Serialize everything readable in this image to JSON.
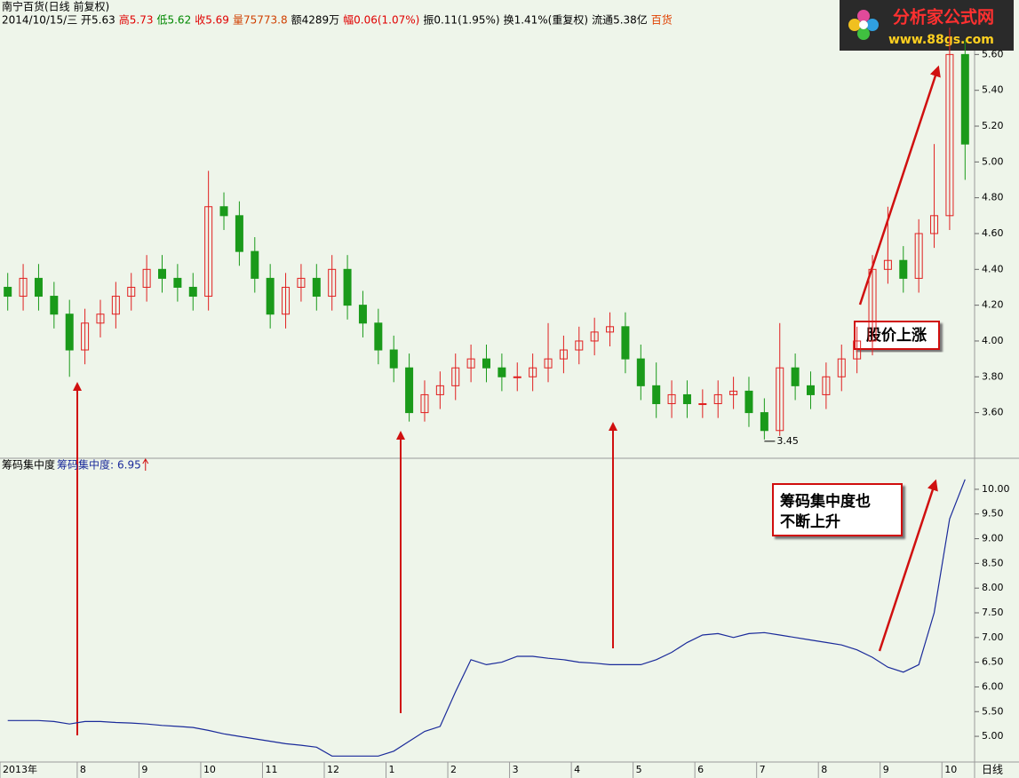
{
  "header": {
    "title": "南宁百货(日线 前复权)",
    "info": [
      {
        "text": "2014/10/15/三 开5.63",
        "color": "#000000"
      },
      {
        "text": "高5.73",
        "color": "#e00000"
      },
      {
        "text": "低5.62",
        "color": "#008800"
      },
      {
        "text": "收5.69",
        "color": "#e00000"
      },
      {
        "text": "量75773.8",
        "color": "#d04000"
      },
      {
        "text": "额4289万",
        "color": "#000000"
      },
      {
        "text": "幅0.06(1.07%)",
        "color": "#e00000"
      },
      {
        "text": "振0.11(1.95%)",
        "color": "#000000"
      },
      {
        "text": "换1.41%(重复权)",
        "color": "#000000"
      },
      {
        "text": "流通5.38亿",
        "color": "#000000"
      },
      {
        "text": "百货",
        "color": "#e04000"
      }
    ]
  },
  "logo": {
    "name": "分析家公式网",
    "url": "www.88gs.com"
  },
  "corner_label": "日线",
  "chart_data": [
    {
      "type": "candlestick",
      "up_color": "#e02020",
      "down_color": "#1a9a1a",
      "categories": [
        "2013年",
        null,
        null,
        null,
        null,
        "8",
        null,
        null,
        null,
        "9",
        null,
        null,
        null,
        "10",
        null,
        null,
        null,
        "11",
        null,
        null,
        null,
        "12",
        null,
        null,
        null,
        "1",
        null,
        null,
        null,
        "2",
        null,
        null,
        null,
        "3",
        null,
        null,
        null,
        "4",
        null,
        null,
        null,
        "5",
        null,
        null,
        null,
        "6",
        null,
        null,
        null,
        "7",
        null,
        null,
        null,
        "8",
        null,
        null,
        null,
        "9",
        null,
        null,
        null,
        "10",
        null
      ],
      "open": [
        4.3,
        4.25,
        4.35,
        4.25,
        4.15,
        3.95,
        4.1,
        4.15,
        4.25,
        4.3,
        4.4,
        4.35,
        4.3,
        4.25,
        4.75,
        4.7,
        4.5,
        4.35,
        4.15,
        4.3,
        4.35,
        4.25,
        4.4,
        4.2,
        4.1,
        3.95,
        3.85,
        3.6,
        3.7,
        3.75,
        3.85,
        3.9,
        3.85,
        3.8,
        3.8,
        3.85,
        3.9,
        3.95,
        4.0,
        4.05,
        4.08,
        3.9,
        3.75,
        3.65,
        3.7,
        3.65,
        3.65,
        3.7,
        3.72,
        3.6,
        3.5,
        3.85,
        3.75,
        3.7,
        3.8,
        3.9,
        4.0,
        4.4,
        4.45,
        4.35,
        4.6,
        4.7,
        5.6
      ],
      "high": [
        4.38,
        4.43,
        4.43,
        4.33,
        4.23,
        4.18,
        4.23,
        4.33,
        4.38,
        4.48,
        4.48,
        4.43,
        4.38,
        4.95,
        4.83,
        4.78,
        4.58,
        4.43,
        4.38,
        4.43,
        4.43,
        4.48,
        4.48,
        4.28,
        4.18,
        4.03,
        3.93,
        3.78,
        3.83,
        3.93,
        3.98,
        3.98,
        3.93,
        3.88,
        3.93,
        4.1,
        4.03,
        4.08,
        4.13,
        4.16,
        4.16,
        3.98,
        3.88,
        3.78,
        3.78,
        3.73,
        3.78,
        3.8,
        3.8,
        3.68,
        4.1,
        3.93,
        3.83,
        3.88,
        3.98,
        4.08,
        4.48,
        4.75,
        4.53,
        4.68,
        5.1,
        5.75,
        5.68
      ],
      "low": [
        4.17,
        4.17,
        4.17,
        4.07,
        3.8,
        3.87,
        4.02,
        4.07,
        4.17,
        4.22,
        4.27,
        4.22,
        4.17,
        4.17,
        4.62,
        4.42,
        4.27,
        4.07,
        4.07,
        4.22,
        4.17,
        4.17,
        4.12,
        4.02,
        3.87,
        3.77,
        3.55,
        3.55,
        3.62,
        3.67,
        3.77,
        3.77,
        3.72,
        3.72,
        3.72,
        3.77,
        3.82,
        3.87,
        3.92,
        3.97,
        3.82,
        3.67,
        3.57,
        3.57,
        3.57,
        3.57,
        3.57,
        3.62,
        3.52,
        3.45,
        3.47,
        3.67,
        3.62,
        3.62,
        3.72,
        3.82,
        3.92,
        4.32,
        4.27,
        4.27,
        4.52,
        4.62,
        4.9
      ],
      "close": [
        4.25,
        4.35,
        4.25,
        4.15,
        3.95,
        4.1,
        4.15,
        4.25,
        4.3,
        4.4,
        4.35,
        4.3,
        4.25,
        4.75,
        4.7,
        4.5,
        4.35,
        4.15,
        4.3,
        4.35,
        4.25,
        4.4,
        4.2,
        4.1,
        3.95,
        3.85,
        3.6,
        3.7,
        3.75,
        3.85,
        3.9,
        3.85,
        3.8,
        3.8,
        3.85,
        3.9,
        3.95,
        4.0,
        4.05,
        4.08,
        3.9,
        3.75,
        3.65,
        3.7,
        3.65,
        3.65,
        3.7,
        3.72,
        3.6,
        3.5,
        3.85,
        3.75,
        3.7,
        3.8,
        3.9,
        4.0,
        4.4,
        4.45,
        4.35,
        4.6,
        4.7,
        5.6,
        5.1
      ],
      "ylim": [
        3.35,
        5.83
      ],
      "yticks": [
        {
          "value": 3.6,
          "label": "3.60"
        },
        {
          "value": 3.8,
          "label": "3.80"
        },
        {
          "value": 4.0,
          "label": "4.00"
        },
        {
          "value": 4.2,
          "label": "4.20"
        },
        {
          "value": 4.4,
          "label": "4.40"
        },
        {
          "value": 4.6,
          "label": "4.60"
        },
        {
          "value": 4.8,
          "label": "4.80"
        },
        {
          "value": 5.0,
          "label": "5.00"
        },
        {
          "value": 5.2,
          "label": "5.20"
        },
        {
          "value": 5.4,
          "label": "5.40"
        },
        {
          "value": 5.6,
          "label": "5.60"
        }
      ],
      "min_label": 3.45,
      "annotation": "股价上涨"
    },
    {
      "type": "line",
      "title": "筹码集中度",
      "legend": {
        "label": "筹码集中度:",
        "value": 6.95
      },
      "series": [
        {
          "name": "筹码集中度",
          "color": "#1a2a9a",
          "values": [
            5.32,
            5.32,
            5.32,
            5.3,
            5.25,
            5.3,
            5.3,
            5.28,
            5.27,
            5.25,
            5.22,
            5.2,
            5.18,
            5.12,
            5.05,
            5.0,
            4.95,
            4.9,
            4.85,
            4.82,
            4.78,
            4.6,
            4.6,
            4.6,
            4.6,
            4.7,
            4.9,
            5.1,
            5.2,
            5.9,
            6.55,
            6.45,
            6.5,
            6.62,
            6.62,
            6.58,
            6.55,
            6.5,
            6.48,
            6.45,
            6.45,
            6.45,
            6.55,
            6.7,
            6.9,
            7.05,
            7.08,
            7.0,
            7.08,
            7.1,
            7.05,
            7.0,
            6.95,
            6.9,
            6.85,
            6.75,
            6.6,
            6.4,
            6.3,
            6.45,
            7.5,
            9.4,
            10.2
          ]
        }
      ],
      "ylim": [
        4.48,
        10.61
      ],
      "yticks": [
        {
          "value": 5.0,
          "label": "5.00"
        },
        {
          "value": 5.5,
          "label": "5.50"
        },
        {
          "value": 6.0,
          "label": "6.00"
        },
        {
          "value": 6.5,
          "label": "6.50"
        },
        {
          "value": 7.0,
          "label": "7.00"
        },
        {
          "value": 7.5,
          "label": "7.50"
        },
        {
          "value": 8.0,
          "label": "8.00"
        },
        {
          "value": 8.5,
          "label": "8.50"
        },
        {
          "value": 9.0,
          "label": "9.00"
        },
        {
          "value": 9.5,
          "label": "9.50"
        },
        {
          "value": 10.0,
          "label": "10.00"
        }
      ],
      "annotation": [
        "筹码集中度也",
        "不断上升"
      ]
    }
  ]
}
